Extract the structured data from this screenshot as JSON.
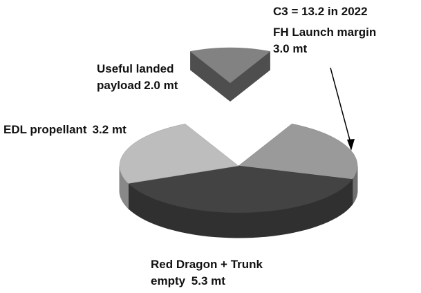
{
  "chart_data": {
    "type": "pie3d",
    "annotation": "C3 = 13.2 in 2022",
    "categories": [
      [
        "Useful landed",
        "payload"
      ],
      [
        "FH Launch margin"
      ],
      [
        "Red Dragon + Trunk",
        "empty "
      ],
      [
        "EDL propellant",
        ""
      ]
    ],
    "values": [
      2.0,
      3.0,
      5.3,
      3.2
    ],
    "value_labels": [
      "2.0 mt",
      "3.0 mt",
      "5.3 mt",
      "3.2 mt"
    ],
    "colors": [
      "#828282",
      "#9a9a9a",
      "#434343",
      "#bdbdbd"
    ],
    "exploded": 0
  }
}
